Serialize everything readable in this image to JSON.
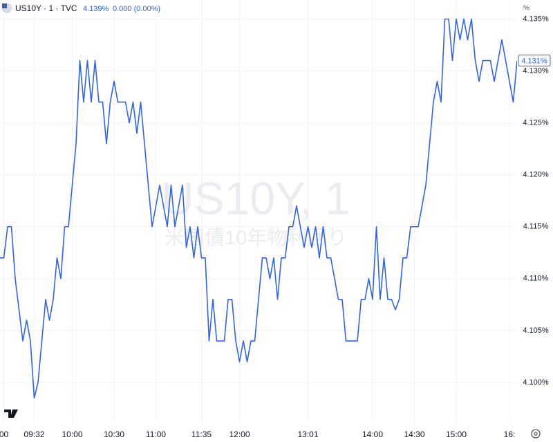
{
  "chart_data": {
    "type": "line",
    "header": {
      "symbol": "US10Y · 1 · TVC",
      "price": "4.139%",
      "change": "0.000 (0.00%)"
    },
    "watermark": {
      "title": "US10Y, 1",
      "subtitle": "米国債10年物利回り"
    },
    "unit": "%",
    "last_value": {
      "value": 4.131,
      "label": "4.131%"
    },
    "color": "#2f62f0",
    "grid": true,
    "ylim": [
      4.0962,
      4.1355
    ],
    "yticks": [
      {
        "value": 4.1,
        "label": "4.100%"
      },
      {
        "value": 4.105,
        "label": "4.105%"
      },
      {
        "value": 4.11,
        "label": "4.110%"
      },
      {
        "value": 4.115,
        "label": "4.115%"
      },
      {
        "value": 4.12,
        "label": "4.120%"
      },
      {
        "value": 4.125,
        "label": "4.125%"
      },
      {
        "value": 4.13,
        "label": "4.130%"
      },
      {
        "value": 4.135,
        "label": "4.135%"
      }
    ],
    "categories": [
      null,
      "00",
      null,
      null,
      null,
      null,
      null,
      null,
      null,
      "09:32",
      null,
      null,
      null,
      null,
      null,
      null,
      null,
      null,
      null,
      "10:00",
      null,
      null,
      null,
      null,
      null,
      null,
      null,
      null,
      null,
      null,
      "10:30",
      null,
      null,
      null,
      null,
      null,
      null,
      null,
      null,
      null,
      null,
      "11:00",
      null,
      null,
      null,
      null,
      null,
      null,
      null,
      null,
      null,
      null,
      null,
      "11:35",
      null,
      null,
      null,
      null,
      null,
      null,
      null,
      null,
      null,
      "12:00",
      null,
      null,
      null,
      null,
      null,
      null,
      null,
      null,
      null,
      null,
      null,
      null,
      null,
      null,
      null,
      null,
      null,
      "13:01",
      null,
      null,
      null,
      null,
      null,
      null,
      null,
      null,
      null,
      null,
      null,
      null,
      null,
      null,
      null,
      null,
      "14:00",
      null,
      null,
      null,
      null,
      null,
      null,
      null,
      null,
      null,
      null,
      "14:30",
      null,
      null,
      null,
      null,
      null,
      null,
      null,
      null,
      null,
      null,
      "15:00",
      null,
      null,
      null,
      null,
      null,
      null,
      null,
      null,
      null,
      null,
      null,
      null,
      null,
      "16:",
      null,
      null
    ],
    "values": [
      4.112,
      4.112,
      4.115,
      4.115,
      4.11,
      4.107,
      4.104,
      4.106,
      4.104,
      4.0985,
      4.1,
      4.104,
      4.108,
      4.106,
      4.108,
      4.112,
      4.11,
      4.115,
      4.115,
      4.119,
      4.123,
      4.131,
      4.127,
      4.131,
      4.127,
      4.131,
      4.127,
      4.127,
      4.123,
      4.127,
      4.129,
      4.127,
      4.127,
      4.127,
      4.125,
      4.127,
      4.124,
      4.127,
      4.123,
      4.119,
      4.115,
      4.117,
      4.119,
      4.117,
      4.115,
      4.119,
      4.115,
      4.117,
      4.119,
      4.113,
      4.115,
      4.112,
      4.115,
      4.112,
      4.112,
      4.104,
      4.108,
      4.104,
      4.104,
      4.104,
      4.108,
      4.108,
      4.104,
      4.102,
      4.104,
      4.102,
      4.104,
      4.104,
      4.108,
      4.112,
      4.112,
      4.11,
      4.112,
      4.108,
      4.112,
      4.112,
      4.115,
      4.115,
      4.117,
      4.115,
      4.113,
      4.115,
      4.113,
      4.115,
      4.112,
      4.115,
      4.112,
      4.112,
      4.11,
      4.108,
      4.108,
      4.104,
      4.104,
      4.104,
      4.104,
      4.108,
      4.108,
      4.11,
      4.108,
      4.115,
      4.108,
      4.112,
      4.108,
      4.108,
      4.107,
      4.108,
      4.112,
      4.112,
      4.115,
      4.115,
      4.115,
      4.117,
      4.119,
      4.123,
      4.127,
      4.129,
      4.127,
      4.135,
      4.135,
      4.131,
      4.135,
      4.133,
      4.135,
      4.133,
      4.135,
      4.131,
      4.129,
      4.131,
      4.131,
      4.131,
      4.129,
      4.131,
      4.133,
      4.131,
      4.129,
      4.127,
      4.131
    ]
  }
}
